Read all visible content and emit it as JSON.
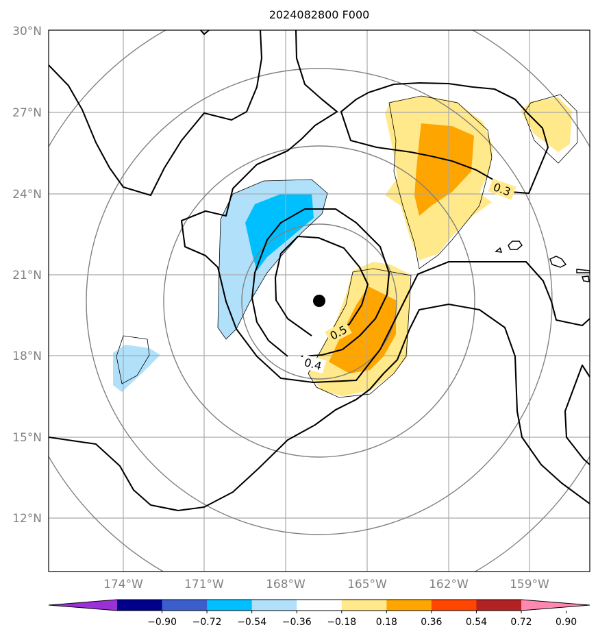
{
  "title": "2024082800 F000",
  "lat_ticks": [
    "30°N",
    "27°N",
    "24°N",
    "21°N",
    "18°N",
    "15°N",
    "12°N"
  ],
  "lon_ticks": [
    "174°W",
    "171°W",
    "168°W",
    "165°W",
    "162°W",
    "159°W"
  ],
  "contour_labels": [
    "0.5",
    "0.4",
    "0.3"
  ],
  "colorbar": {
    "ticks": [
      "−0.90",
      "−0.72",
      "−0.54",
      "−0.36",
      "−0.18",
      "0.18",
      "0.36",
      "0.54",
      "0.72",
      "0.90"
    ],
    "colors": [
      "#9b30d9",
      "#00008b",
      "#3a5fcd",
      "#00bfff",
      "#b0e0fa",
      "#ffffff",
      "#ffe98a",
      "#ffa500",
      "#ff4500",
      "#b22222",
      "#ff88b0"
    ]
  },
  "map": {
    "extent": {
      "lon": [
        -176.5,
        -156.5
      ],
      "lat": [
        10,
        30
      ]
    },
    "center_marker": {
      "lon": -166.8,
      "lat": 20.0
    }
  }
}
